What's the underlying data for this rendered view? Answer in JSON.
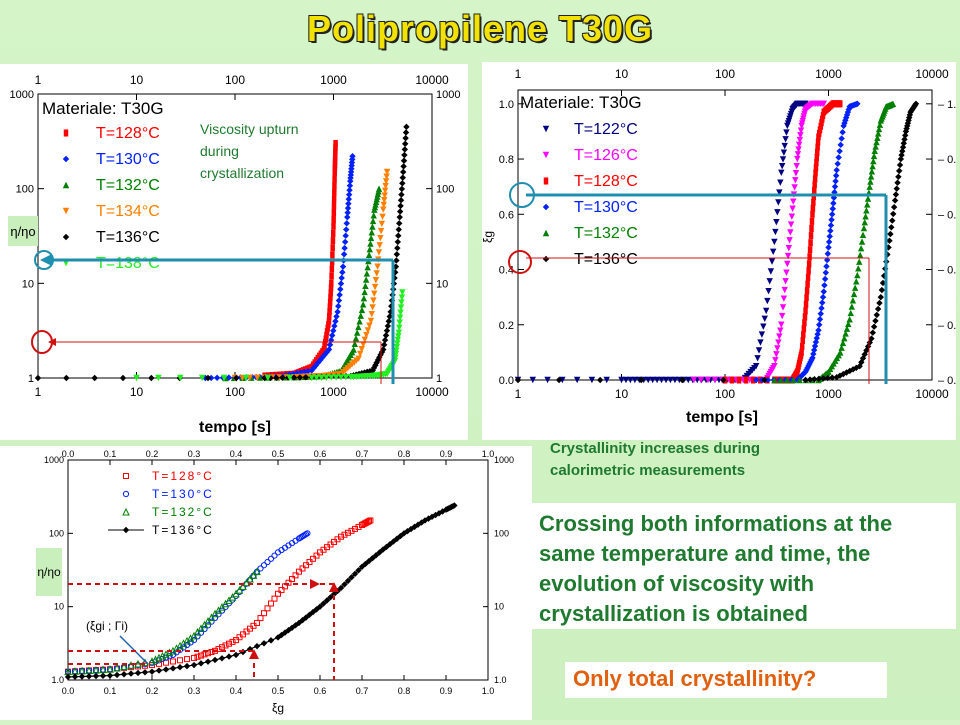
{
  "slide": {
    "title": "Polipropilene   T30G",
    "annotation_viscosity": "Viscosity upturn during crystallization",
    "annotation_crystallinity": "Crystallinity increases during calorimetric measurements",
    "main_text": "Crossing both informations at the same temperature and time, the evolution of viscosity with crystallization is obtained",
    "question": "Only total crystallinity?"
  },
  "colors": {
    "title": "#f2e200",
    "green_text": "#1f7a2f",
    "orange_text": "#e06010",
    "highlight_blue": "#1f8fb0",
    "highlight_red": "#d01010"
  },
  "chart_data": [
    {
      "type": "scatter",
      "xlabel": "tempo [s]",
      "ylabel": "η/ηο",
      "xscale": "log",
      "yscale": "log",
      "xlim": [
        1,
        10000
      ],
      "ylim": [
        1,
        1000
      ],
      "x_ticks": [
        "1",
        "10",
        "100",
        "1000",
        "10000"
      ],
      "y_ticks": [
        "1",
        "10",
        "100",
        "1000"
      ],
      "legend_title": "Materiale: T30G",
      "series": [
        {
          "name": "T=128°C",
          "color": "#ff0000",
          "marker": "square",
          "x": [
            200,
            400,
            600,
            800,
            900,
            950,
            1000,
            1030,
            1050
          ],
          "y": [
            1.05,
            1.1,
            1.3,
            2,
            4,
            10,
            40,
            150,
            300
          ]
        },
        {
          "name": "T=130°C",
          "color": "#0020ff",
          "marker": "diamond",
          "x": [
            50,
            150,
            300,
            600,
            900,
            1100,
            1250,
            1380,
            1480,
            1560
          ],
          "y": [
            1.0,
            1.02,
            1.05,
            1.2,
            2,
            5,
            15,
            50,
            120,
            220
          ]
        },
        {
          "name": "T=132°C",
          "color": "#008000",
          "marker": "triangle",
          "x": [
            80,
            400,
            800,
            1200,
            1600,
            2000,
            2300,
            2600,
            2900
          ],
          "y": [
            1.0,
            1.02,
            1.05,
            1.2,
            2,
            6,
            20,
            60,
            100
          ]
        },
        {
          "name": "T=134°C",
          "color": "#ff8000",
          "marker": "triangle-down",
          "x": [
            100,
            400,
            800,
            1200,
            1800,
            2400,
            2800,
            3200,
            3500
          ],
          "y": [
            1.0,
            1.02,
            1.05,
            1.1,
            1.6,
            4,
            15,
            60,
            150
          ]
        },
        {
          "name": "T=136°C",
          "color": "#000000",
          "marker": "diamond",
          "x": [
            1,
            200,
            600,
            1500,
            2500,
            3200,
            3800,
            4300,
            4700,
            5100,
            5500
          ],
          "y": [
            1.0,
            1.0,
            1.02,
            1.05,
            1.2,
            2,
            5,
            15,
            50,
            150,
            450
          ]
        },
        {
          "name": "T=138°C",
          "color": "#22ee22",
          "marker": "triangle-down",
          "x": [
            10,
            600,
            1500,
            2500,
            3500,
            4200,
            4600,
            5000
          ],
          "y": [
            1.0,
            1.0,
            1.02,
            1.05,
            1.1,
            1.5,
            3,
            8
          ]
        }
      ]
    },
    {
      "type": "scatter",
      "xlabel": "tempo [s]",
      "ylabel": "ξg",
      "xscale": "log",
      "xlim": [
        1,
        10000
      ],
      "ylim": [
        0,
        1.05
      ],
      "x_ticks": [
        "1",
        "10",
        "100",
        "1000",
        "10000"
      ],
      "y_ticks": [
        "0.0",
        "0.2",
        "0.4",
        "0.6",
        "0.8",
        "1.0"
      ],
      "legend_title": "Materiale: T30G",
      "series": [
        {
          "name": "T=122°C",
          "color": "#000080",
          "marker": "triangle-down",
          "x": [
            1,
            10,
            20,
            40,
            80,
            150,
            200,
            250,
            300,
            350,
            400,
            450,
            500,
            600
          ],
          "y": [
            0,
            0,
            0,
            0,
            0,
            0,
            0.05,
            0.25,
            0.5,
            0.75,
            0.92,
            0.98,
            1,
            1
          ]
        },
        {
          "name": "T=126°C",
          "color": "#ff00ff",
          "marker": "triangle-down",
          "x": [
            50,
            150,
            250,
            300,
            350,
            400,
            450,
            500,
            550,
            600,
            700,
            900
          ],
          "y": [
            0,
            0,
            0,
            0.05,
            0.2,
            0.42,
            0.62,
            0.8,
            0.92,
            0.98,
            1,
            1
          ]
        },
        {
          "name": "T=128°C",
          "color": "#ff0000",
          "marker": "square",
          "x": [
            100,
            300,
            450,
            500,
            550,
            600,
            650,
            700,
            750,
            800,
            900,
            1100,
            1300
          ],
          "y": [
            0,
            0,
            0,
            0.03,
            0.1,
            0.25,
            0.42,
            0.6,
            0.75,
            0.88,
            0.97,
            1,
            1
          ]
        },
        {
          "name": "T=130°C",
          "color": "#0020ff",
          "marker": "diamond",
          "x": [
            200,
            500,
            600,
            700,
            800,
            900,
            1000,
            1100,
            1200,
            1400,
            1600,
            1900
          ],
          "y": [
            0,
            0,
            0.03,
            0.08,
            0.18,
            0.32,
            0.48,
            0.62,
            0.76,
            0.92,
            0.99,
            1
          ]
        },
        {
          "name": "T=132°C",
          "color": "#008000",
          "marker": "triangle",
          "x": [
            300,
            800,
            1000,
            1300,
            1600,
            1900,
            2200,
            2500,
            2800,
            3200,
            3600,
            4200
          ],
          "y": [
            0,
            0,
            0.03,
            0.1,
            0.22,
            0.38,
            0.55,
            0.7,
            0.83,
            0.94,
            0.99,
            1
          ]
        },
        {
          "name": "T=136°C",
          "color": "#000000",
          "marker": "diamond",
          "x": [
            1,
            600,
            1200,
            2000,
            2600,
            3200,
            3800,
            4400,
            5000,
            5600,
            6200,
            7000
          ],
          "y": [
            0,
            0,
            0.01,
            0.05,
            0.15,
            0.3,
            0.48,
            0.65,
            0.8,
            0.9,
            0.97,
            1
          ]
        }
      ]
    },
    {
      "type": "scatter",
      "xlabel": "ξg",
      "ylabel": "η/ηο",
      "yscale": "log",
      "xlim": [
        0,
        1.0
      ],
      "ylim": [
        1,
        1000
      ],
      "x_ticks": [
        "0.0",
        "0.1",
        "0.2",
        "0.3",
        "0.4",
        "0.5",
        "0.6",
        "0.7",
        "0.8",
        "0.9",
        "1.0"
      ],
      "y_ticks": [
        "1.0",
        "10",
        "100",
        "1000"
      ],
      "annotation": "(ξgi ; Γi)",
      "series": [
        {
          "name": "T=128°C",
          "color": "#ff0000",
          "marker": "square-open",
          "x": [
            0.0,
            0.1,
            0.2,
            0.3,
            0.35,
            0.4,
            0.45,
            0.5,
            0.55,
            0.6,
            0.65,
            0.7,
            0.72
          ],
          "y": [
            1.3,
            1.4,
            1.6,
            2.0,
            2.5,
            3.5,
            6,
            15,
            30,
            55,
            90,
            130,
            150
          ]
        },
        {
          "name": "T=130°C",
          "color": "#0020ff",
          "marker": "circle-open",
          "x": [
            0.0,
            0.1,
            0.2,
            0.25,
            0.3,
            0.35,
            0.4,
            0.45,
            0.5,
            0.55,
            0.57
          ],
          "y": [
            1.3,
            1.4,
            1.7,
            2.2,
            3.5,
            7,
            14,
            30,
            55,
            85,
            100
          ]
        },
        {
          "name": "T=132°C",
          "color": "#008000",
          "marker": "triangle-open",
          "x": [
            0.0,
            0.1,
            0.2,
            0.25,
            0.3,
            0.35,
            0.4,
            0.45
          ],
          "y": [
            1.3,
            1.4,
            1.8,
            2.5,
            4,
            8,
            15,
            30
          ]
        },
        {
          "name": "T=136°C",
          "color": "#000000",
          "marker": "diamond-line",
          "x": [
            0.0,
            0.1,
            0.2,
            0.3,
            0.4,
            0.5,
            0.55,
            0.6,
            0.65,
            0.7,
            0.75,
            0.8,
            0.85,
            0.9,
            0.92
          ],
          "y": [
            1.1,
            1.15,
            1.3,
            1.6,
            2.2,
            3.8,
            6,
            10,
            18,
            35,
            60,
            100,
            150,
            210,
            240
          ]
        }
      ]
    }
  ]
}
